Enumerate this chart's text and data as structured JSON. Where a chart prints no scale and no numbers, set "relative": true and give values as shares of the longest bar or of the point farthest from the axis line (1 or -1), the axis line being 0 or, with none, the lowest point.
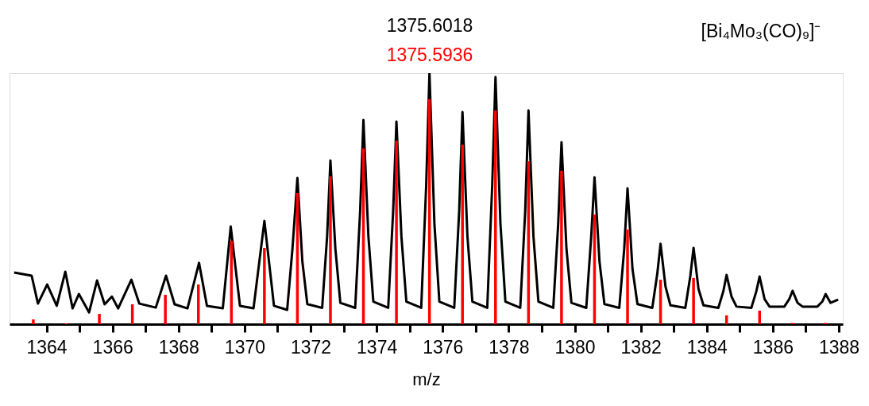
{
  "chart_data": {
    "type": "line",
    "relative": true,
    "xlabel": "m/z",
    "annotations": [
      "[Bi₄Mo₃(CO)₉]⁻"
    ],
    "xlim": [
      1363,
      1388
    ],
    "xticks": [
      1364,
      {
        "value": 1365,
        "label": null
      },
      1366,
      {
        "value": 1367,
        "label": null
      },
      1368,
      {
        "value": 1369,
        "label": null
      },
      1370,
      {
        "value": 1371,
        "label": null
      },
      1372,
      {
        "value": 1373,
        "label": null
      },
      1374,
      {
        "value": 1375,
        "label": null
      },
      1376,
      {
        "value": 1377,
        "label": null
      },
      1378,
      {
        "value": 1379,
        "label": null
      },
      1380,
      {
        "value": 1381,
        "label": null
      },
      1382,
      {
        "value": 1383,
        "label": null
      },
      1384,
      {
        "value": 1385,
        "label": null
      },
      1386,
      {
        "value": 1387,
        "label": null
      },
      1388
    ],
    "series": [
      {
        "name": "1375.6018",
        "color": "#000000",
        "x": [
          1363.02,
          1363.55,
          1363.74,
          1364.02,
          1364.31,
          1364.57,
          1364.79,
          1364.98,
          1365.29,
          1365.53,
          1365.76,
          1365.98,
          1366.17,
          1366.57,
          1366.81,
          1367.31,
          1367.62,
          1367.88,
          1368.27,
          1368.62,
          1368.86,
          1369.34,
          1369.58,
          1369.86,
          1370.27,
          1370.6,
          1370.89,
          1371.29,
          1371.45,
          1371.6,
          1371.75,
          1371.9,
          1372.35,
          1372.5,
          1372.6,
          1372.75,
          1372.9,
          1373.35,
          1373.5,
          1373.6,
          1373.75,
          1373.9,
          1374.35,
          1374.5,
          1374.6,
          1374.75,
          1374.9,
          1375.35,
          1375.5,
          1375.6,
          1375.75,
          1375.9,
          1376.35,
          1376.5,
          1376.6,
          1376.75,
          1376.9,
          1377.35,
          1377.5,
          1377.6,
          1377.75,
          1377.9,
          1378.35,
          1378.5,
          1378.6,
          1378.75,
          1378.9,
          1379.35,
          1379.5,
          1379.6,
          1379.75,
          1379.9,
          1380.35,
          1380.5,
          1380.6,
          1380.75,
          1380.9,
          1381.35,
          1381.5,
          1381.6,
          1381.75,
          1381.9,
          1382.35,
          1382.5,
          1382.6,
          1382.75,
          1382.9,
          1383.35,
          1383.5,
          1383.6,
          1383.75,
          1383.9,
          1384.35,
          1384.5,
          1384.6,
          1384.75,
          1384.9,
          1385.35,
          1385.5,
          1385.6,
          1385.75,
          1385.9,
          1386.35,
          1386.5,
          1386.6,
          1386.75,
          1386.9,
          1387.35,
          1387.5,
          1387.6,
          1387.75,
          1387.98
        ],
        "values": [
          0.206,
          0.193,
          0.082,
          0.158,
          0.073,
          0.209,
          0.063,
          0.12,
          0.047,
          0.174,
          0.079,
          0.11,
          0.063,
          0.177,
          0.082,
          0.066,
          0.193,
          0.079,
          0.063,
          0.244,
          0.073,
          0.063,
          0.389,
          0.073,
          0.063,
          0.411,
          0.073,
          0.057,
          0.3,
          0.582,
          0.25,
          0.08,
          0.065,
          0.35,
          0.652,
          0.3,
          0.085,
          0.065,
          0.45,
          0.813,
          0.35,
          0.09,
          0.065,
          0.45,
          0.807,
          0.35,
          0.09,
          0.065,
          0.55,
          1.0,
          0.4,
          0.09,
          0.065,
          0.45,
          0.845,
          0.35,
          0.09,
          0.065,
          0.55,
          0.984,
          0.4,
          0.09,
          0.065,
          0.45,
          0.851,
          0.35,
          0.09,
          0.065,
          0.4,
          0.725,
          0.3,
          0.085,
          0.065,
          0.35,
          0.585,
          0.25,
          0.08,
          0.065,
          0.3,
          0.541,
          0.22,
          0.08,
          0.065,
          0.2,
          0.32,
          0.15,
          0.075,
          0.065,
          0.19,
          0.304,
          0.14,
          0.075,
          0.065,
          0.13,
          0.196,
          0.11,
          0.07,
          0.065,
          0.13,
          0.19,
          0.1,
          0.07,
          0.07,
          0.1,
          0.133,
          0.085,
          0.07,
          0.07,
          0.09,
          0.12,
          0.085,
          0.098
        ]
      },
      {
        "name": "1375.5936",
        "type": "bar",
        "color": "#ff0000",
        "x": [
          1363.6,
          1364.6,
          1365.6,
          1366.6,
          1367.6,
          1368.6,
          1369.6,
          1370.6,
          1371.6,
          1372.6,
          1373.6,
          1374.6,
          1375.6,
          1376.6,
          1377.6,
          1378.6,
          1379.6,
          1380.6,
          1381.6,
          1382.6,
          1383.6,
          1384.6,
          1385.6,
          1386.6,
          1387.6
        ],
        "values": [
          0.019,
          0.003,
          0.041,
          0.079,
          0.117,
          0.158,
          0.332,
          0.304,
          0.522,
          0.589,
          0.7,
          0.731,
          0.896,
          0.715,
          0.851,
          0.649,
          0.611,
          0.437,
          0.377,
          0.177,
          0.184,
          0.035,
          0.054,
          0.005,
          0.005
        ]
      }
    ]
  }
}
